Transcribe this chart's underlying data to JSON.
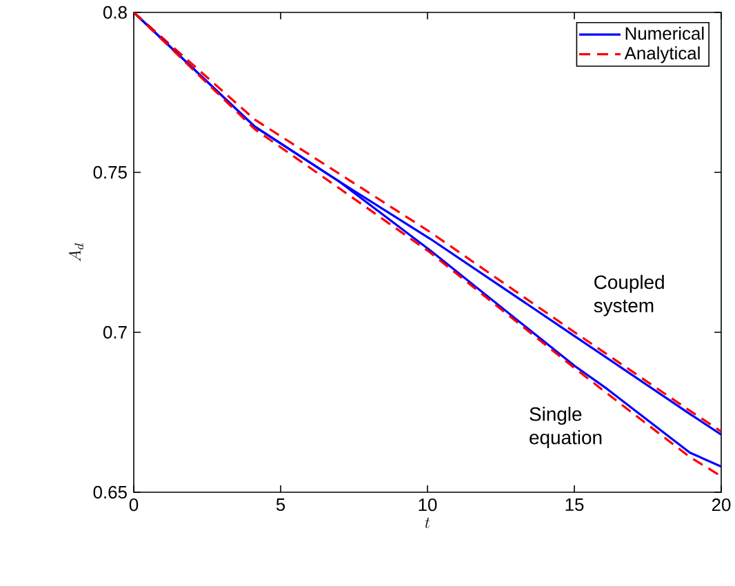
{
  "chart_data": {
    "type": "line",
    "xlabel": "t",
    "ylabel": "A_d",
    "xlim": [
      0,
      20
    ],
    "ylim": [
      0.65,
      0.8
    ],
    "xticks": [
      0,
      5,
      10,
      15,
      20
    ],
    "yticks": [
      0.65,
      0.7,
      0.75,
      0.8
    ],
    "grid": false,
    "legend": "top right",
    "marker": "none",
    "series": [
      {
        "name": "Numerical",
        "color": "#0000ff",
        "line_style": "solid",
        "x": [
          0,
          4.12,
          7,
          10.08,
          15.01,
          18.93,
          20
        ],
        "values": [
          0.8,
          0.7643,
          0.7471,
          0.7293,
          0.6988,
          0.6745,
          0.668
        ]
      },
      {
        "name": "Analytical",
        "color": "#ff0000",
        "line_style": "dashed",
        "x": [
          0,
          4.12,
          10.08,
          15.01,
          18.93,
          20
        ],
        "values": [
          0.8,
          0.7665,
          0.7314,
          0.7,
          0.6755,
          0.669
        ]
      },
      {
        "color": "#0000ff",
        "line_style": "solid",
        "x": [
          0,
          4.12,
          7,
          10.08,
          15.01,
          16.1,
          18.93,
          20
        ],
        "values": [
          0.8,
          0.7643,
          0.7471,
          0.7257,
          0.6895,
          0.6824,
          0.6624,
          0.658
        ]
      },
      {
        "color": "#ff0000",
        "line_style": "dashed",
        "x": [
          0,
          4.12,
          7,
          10.08,
          15.01,
          16.1,
          18.93,
          20
        ],
        "values": [
          0.8,
          0.7635,
          0.745,
          0.725,
          0.6888,
          0.681,
          0.661,
          0.655
        ]
      }
    ],
    "annotations": [
      "Coupled system",
      "Single equation"
    ]
  }
}
